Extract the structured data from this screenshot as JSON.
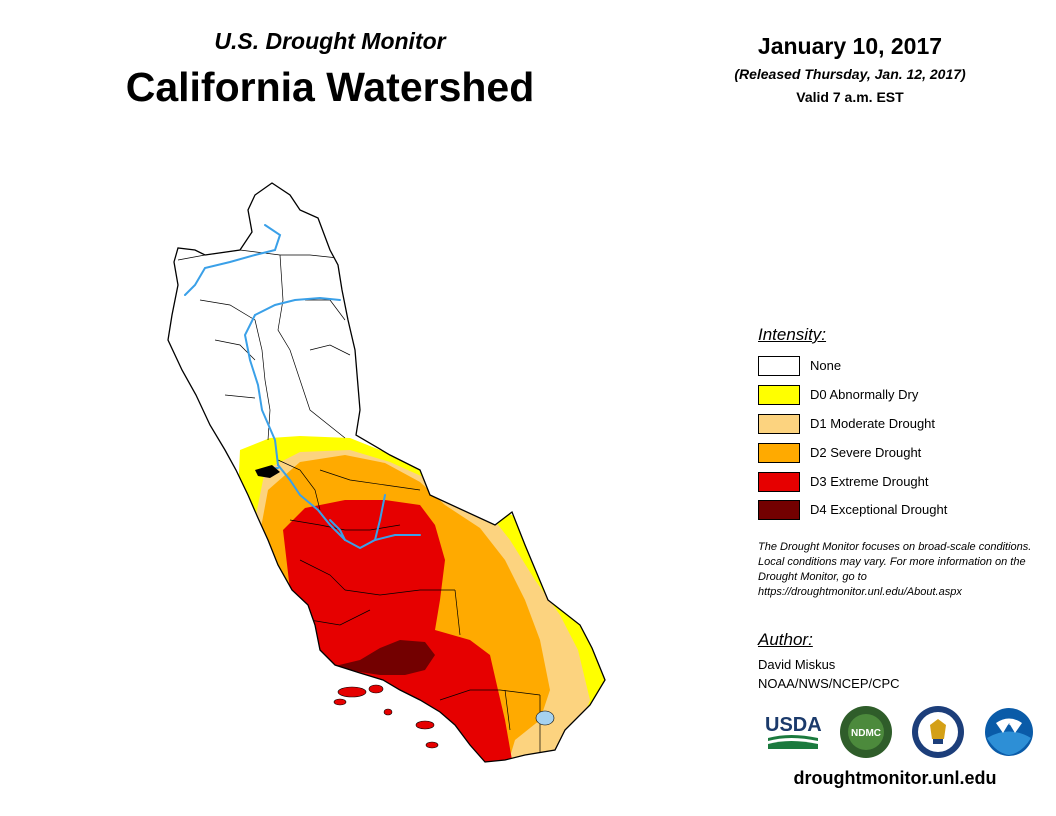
{
  "header": {
    "supertitle": "U.S. Drought Monitor",
    "title": "California Watershed",
    "date": "January 10, 2017",
    "released": "(Released Thursday, Jan. 12, 2017)",
    "valid": "Valid 7 a.m. EST"
  },
  "legend": {
    "heading": "Intensity:",
    "items": [
      {
        "label": "None",
        "color": "#ffffff"
      },
      {
        "label": "D0 Abnormally Dry",
        "color": "#ffff00"
      },
      {
        "label": "D1 Moderate Drought",
        "color": "#fcd37f"
      },
      {
        "label": "D2 Severe Drought",
        "color": "#ffaa00"
      },
      {
        "label": "D3 Extreme Drought",
        "color": "#e60000"
      },
      {
        "label": "D4 Exceptional Drought",
        "color": "#730000"
      }
    ]
  },
  "note": "The Drought Monitor focuses on broad-scale conditions. Local conditions may vary. For more information on the Drought Monitor, go to https://droughtmonitor.unl.edu/About.aspx",
  "author": {
    "heading": "Author:",
    "name": "David Miskus",
    "org": "NOAA/NWS/NCEP/CPC"
  },
  "logos": {
    "usda": "USDA",
    "ndmc": "NDMC",
    "noaa": "NOAA"
  },
  "website": "droughtmonitor.unl.edu"
}
